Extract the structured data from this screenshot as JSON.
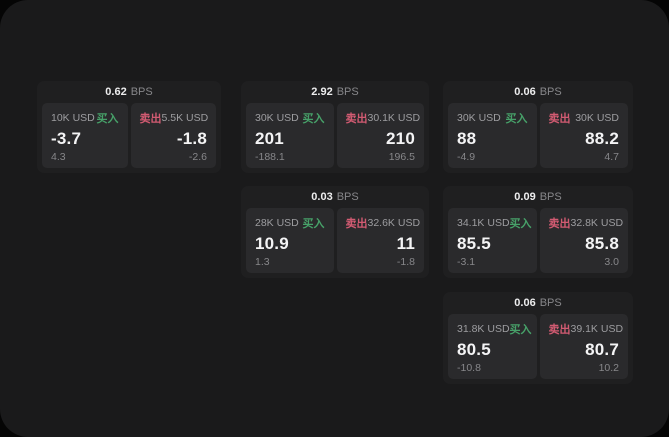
{
  "units": {
    "bps": "BPS"
  },
  "labels": {
    "buy": "买入",
    "sell": "卖出"
  },
  "theme": {
    "page_bg": "#050505",
    "surface_bg": "#1a1a1b",
    "card_bg": "#1f1f20",
    "panel_bg": "#2a2a2c",
    "buy_color": "#47a169",
    "sell_color": "#d25b72",
    "label_color": "#9d9da0",
    "muted_color": "#87878a",
    "value_color": "#f4f4f5",
    "header_value_color": "#ededee"
  },
  "cards": [
    {
      "bps": "0.62",
      "buy": {
        "size": "10K USD",
        "price": "-3.7",
        "delta": "4.3"
      },
      "sell": {
        "size": "5.5K USD",
        "price": "-1.8",
        "delta": "-2.6"
      }
    },
    {
      "bps": "2.92",
      "buy": {
        "size": "30K USD",
        "price": "201",
        "delta": "-188.1"
      },
      "sell": {
        "size": "30.1K USD",
        "price": "210",
        "delta": "196.5"
      }
    },
    {
      "bps": "0.06",
      "buy": {
        "size": "30K USD",
        "price": "88",
        "delta": "-4.9"
      },
      "sell": {
        "size": "30K USD",
        "price": "88.2",
        "delta": "4.7"
      }
    },
    {
      "bps": "0.03",
      "buy": {
        "size": "28K USD",
        "price": "10.9",
        "delta": "1.3"
      },
      "sell": {
        "size": "32.6K USD",
        "price": "11",
        "delta": "-1.8"
      }
    },
    {
      "bps": "0.09",
      "buy": {
        "size": "34.1K USD",
        "price": "85.5",
        "delta": "-3.1"
      },
      "sell": {
        "size": "32.8K USD",
        "price": "85.8",
        "delta": "3.0"
      }
    },
    {
      "bps": "0.06",
      "buy": {
        "size": "31.8K USD",
        "price": "80.5",
        "delta": "-10.8"
      },
      "sell": {
        "size": "39.1K USD",
        "price": "80.7",
        "delta": "10.2"
      }
    }
  ]
}
